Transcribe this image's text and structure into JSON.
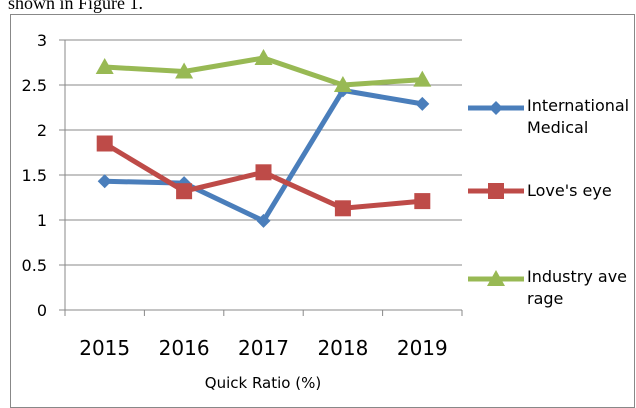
{
  "caption_fragment": "shown in Figure 1.",
  "chart_data": {
    "type": "line",
    "x_label": "Quick Ratio (%)",
    "categories": [
      "2015",
      "2016",
      "2017",
      "2018",
      "2019"
    ],
    "series": [
      {
        "name": "International Medical",
        "color": "#4a7ebb",
        "marker": "diamond",
        "values": [
          1.43,
          1.41,
          0.99,
          2.44,
          2.29
        ]
      },
      {
        "name": "Love's eye",
        "color": "#be4b48",
        "marker": "square",
        "values": [
          1.85,
          1.32,
          1.53,
          1.13,
          1.21
        ]
      },
      {
        "name": "Industry average",
        "color": "#98b954",
        "marker": "triangle",
        "values": [
          2.7,
          2.65,
          2.8,
          2.5,
          2.56
        ]
      }
    ],
    "ylim": [
      0,
      3
    ],
    "yticks": [
      0,
      0.5,
      1,
      1.5,
      2,
      2.5,
      3
    ],
    "grid": true,
    "legend": "right"
  }
}
